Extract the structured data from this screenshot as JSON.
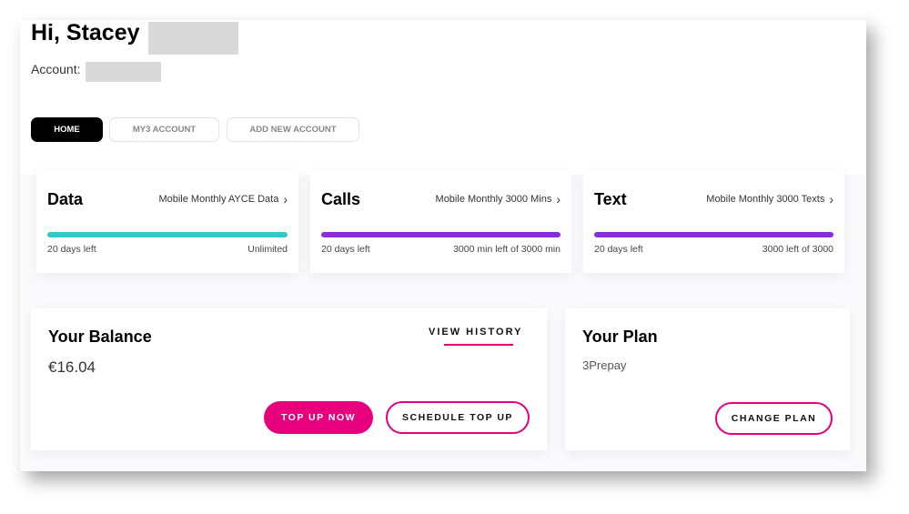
{
  "header": {
    "greeting": "Hi, Stacey",
    "account_label": "Account:"
  },
  "tabs": [
    {
      "label": "HOME",
      "active": true
    },
    {
      "label": "MY3 ACCOUNT",
      "active": false
    },
    {
      "label": "ADD NEW ACCOUNT",
      "active": false
    }
  ],
  "usage": [
    {
      "title": "Data",
      "plan": "Mobile Monthly AYCE Data",
      "days_left": "20 days left",
      "remaining": "Unlimited",
      "color": "#2ecbc9",
      "fill_percent": 100
    },
    {
      "title": "Calls",
      "plan": "Mobile Monthly 3000 Mins",
      "days_left": "20 days left",
      "remaining": "3000 min left of 3000 min",
      "color": "#8a2be2",
      "fill_percent": 100
    },
    {
      "title": "Text",
      "plan": "Mobile Monthly 3000 Texts",
      "days_left": "20 days left",
      "remaining": "3000 left of 3000",
      "color": "#8a2be2",
      "fill_percent": 100
    }
  ],
  "balance": {
    "title": "Your Balance",
    "amount": "€16.04",
    "view_history": "VIEW HISTORY",
    "top_up": "TOP UP NOW",
    "schedule": "SCHEDULE TOP UP"
  },
  "plan": {
    "title": "Your Plan",
    "name": "3Prepay",
    "change": "CHANGE PLAN"
  },
  "colors": {
    "accent": "#e6007e"
  }
}
